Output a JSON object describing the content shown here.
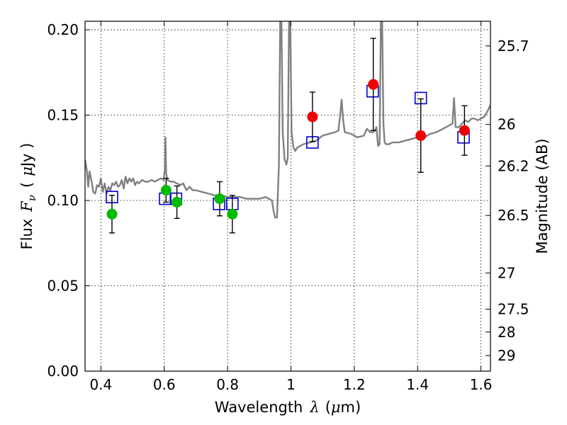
{
  "chart_data": {
    "type": "scatter",
    "title": "",
    "xlabel": "Wavelength",
    "xlabel_symbol": "λ",
    "xlabel_unit_open": "(",
    "xlabel_unit_mu": "μ",
    "xlabel_unit_rest": "m)",
    "ylabel": "Flux",
    "ylabel_symbol": "F",
    "ylabel_subscript": "ν",
    "ylabel_unit_open": "(",
    "ylabel_unit_mu": "μ",
    "ylabel_unit_rest": "Jy )",
    "y2label": "Magnitude (AB)",
    "xlim": [
      0.35,
      1.63
    ],
    "ylim": [
      0.0,
      0.205
    ],
    "grid": true,
    "xticks": [
      {
        "value": 0.4,
        "label": "0.4"
      },
      {
        "value": 0.6,
        "label": "0.6"
      },
      {
        "value": 0.8,
        "label": "0.8"
      },
      {
        "value": 1.0,
        "label": "1"
      },
      {
        "value": 1.2,
        "label": "1.2"
      },
      {
        "value": 1.4,
        "label": "1.4"
      },
      {
        "value": 1.6,
        "label": "1.6"
      }
    ],
    "yticks": [
      {
        "value": 0.0,
        "label": "0.00"
      },
      {
        "value": 0.05,
        "label": "0.05"
      },
      {
        "value": 0.1,
        "label": "0.10"
      },
      {
        "value": 0.15,
        "label": "0.15"
      },
      {
        "value": 0.2,
        "label": "0.20"
      }
    ],
    "y2ticks": [
      {
        "value": 25.7,
        "label": "25.7"
      },
      {
        "value": 26.0,
        "label": "26"
      },
      {
        "value": 26.2,
        "label": "26.2"
      },
      {
        "value": 26.5,
        "label": "26.5"
      },
      {
        "value": 27.0,
        "label": "27"
      },
      {
        "value": 27.5,
        "label": "27.5"
      },
      {
        "value": 28.0,
        "label": "28"
      },
      {
        "value": 29.0,
        "label": "29"
      }
    ],
    "colors": {
      "spectrum": "#808080",
      "model": "#0000cc",
      "optical": "#00bb00",
      "infrared": "#ee0000",
      "errorbar": "#000000"
    },
    "spectrum": [
      [
        0.35,
        0.124
      ],
      [
        0.356,
        0.117
      ],
      [
        0.36,
        0.108
      ],
      [
        0.364,
        0.117
      ],
      [
        0.37,
        0.112
      ],
      [
        0.376,
        0.105
      ],
      [
        0.382,
        0.104
      ],
      [
        0.388,
        0.109
      ],
      [
        0.394,
        0.108
      ],
      [
        0.4,
        0.113
      ],
      [
        0.406,
        0.105
      ],
      [
        0.412,
        0.11
      ],
      [
        0.418,
        0.104
      ],
      [
        0.424,
        0.108
      ],
      [
        0.43,
        0.106
      ],
      [
        0.436,
        0.11
      ],
      [
        0.442,
        0.109
      ],
      [
        0.448,
        0.111
      ],
      [
        0.454,
        0.108
      ],
      [
        0.46,
        0.109
      ],
      [
        0.466,
        0.112
      ],
      [
        0.472,
        0.107
      ],
      [
        0.478,
        0.114
      ],
      [
        0.484,
        0.11
      ],
      [
        0.49,
        0.113
      ],
      [
        0.496,
        0.111
      ],
      [
        0.502,
        0.113
      ],
      [
        0.508,
        0.109
      ],
      [
        0.514,
        0.111
      ],
      [
        0.52,
        0.11
      ],
      [
        0.53,
        0.112
      ],
      [
        0.54,
        0.111
      ],
      [
        0.55,
        0.111
      ],
      [
        0.56,
        0.112
      ],
      [
        0.57,
        0.111
      ],
      [
        0.58,
        0.112
      ],
      [
        0.59,
        0.113
      ],
      [
        0.598,
        0.112
      ],
      [
        0.602,
        0.118
      ],
      [
        0.604,
        0.137
      ],
      [
        0.606,
        0.116
      ],
      [
        0.61,
        0.112
      ],
      [
        0.62,
        0.111
      ],
      [
        0.63,
        0.111
      ],
      [
        0.64,
        0.11
      ],
      [
        0.65,
        0.109
      ],
      [
        0.66,
        0.11
      ],
      [
        0.67,
        0.106
      ],
      [
        0.68,
        0.108
      ],
      [
        0.69,
        0.106
      ],
      [
        0.7,
        0.106
      ],
      [
        0.72,
        0.105
      ],
      [
        0.74,
        0.104
      ],
      [
        0.76,
        0.103
      ],
      [
        0.78,
        0.103
      ],
      [
        0.8,
        0.102
      ],
      [
        0.82,
        0.102
      ],
      [
        0.84,
        0.102
      ],
      [
        0.86,
        0.101
      ],
      [
        0.88,
        0.101
      ],
      [
        0.9,
        0.101
      ],
      [
        0.92,
        0.102
      ],
      [
        0.93,
        0.101
      ],
      [
        0.94,
        0.1
      ],
      [
        0.945,
        0.094
      ],
      [
        0.95,
        0.09
      ],
      [
        0.956,
        0.09
      ],
      [
        0.962,
        0.12
      ],
      [
        0.966,
        0.205
      ],
      [
        0.97,
        0.205
      ],
      [
        0.974,
        0.14
      ],
      [
        0.98,
        0.124
      ],
      [
        0.986,
        0.121
      ],
      [
        0.99,
        0.125
      ],
      [
        0.994,
        0.205
      ],
      [
        0.998,
        0.205
      ],
      [
        1.002,
        0.14
      ],
      [
        1.008,
        0.131
      ],
      [
        1.014,
        0.129
      ],
      [
        1.02,
        0.131
      ],
      [
        1.03,
        0.132
      ],
      [
        1.04,
        0.133
      ],
      [
        1.06,
        0.134
      ],
      [
        1.08,
        0.135
      ],
      [
        1.1,
        0.138
      ],
      [
        1.12,
        0.139
      ],
      [
        1.14,
        0.14
      ],
      [
        1.15,
        0.141
      ],
      [
        1.155,
        0.149
      ],
      [
        1.16,
        0.159
      ],
      [
        1.165,
        0.147
      ],
      [
        1.17,
        0.14
      ],
      [
        1.19,
        0.139
      ],
      [
        1.21,
        0.137
      ],
      [
        1.23,
        0.138
      ],
      [
        1.24,
        0.142
      ],
      [
        1.25,
        0.14
      ],
      [
        1.26,
        0.14
      ],
      [
        1.265,
        0.141
      ],
      [
        1.27,
        0.143
      ],
      [
        1.275,
        0.132
      ],
      [
        1.28,
        0.133
      ],
      [
        1.284,
        0.205
      ],
      [
        1.288,
        0.205
      ],
      [
        1.292,
        0.145
      ],
      [
        1.296,
        0.134
      ],
      [
        1.3,
        0.133
      ],
      [
        1.31,
        0.133
      ],
      [
        1.32,
        0.134
      ],
      [
        1.34,
        0.134
      ],
      [
        1.36,
        0.135
      ],
      [
        1.38,
        0.136
      ],
      [
        1.4,
        0.137
      ],
      [
        1.42,
        0.137
      ],
      [
        1.44,
        0.139
      ],
      [
        1.46,
        0.14
      ],
      [
        1.48,
        0.142
      ],
      [
        1.5,
        0.144
      ],
      [
        1.51,
        0.145
      ],
      [
        1.515,
        0.16
      ],
      [
        1.52,
        0.143
      ],
      [
        1.53,
        0.143
      ],
      [
        1.54,
        0.145
      ],
      [
        1.55,
        0.147
      ],
      [
        1.56,
        0.146
      ],
      [
        1.57,
        0.148
      ],
      [
        1.58,
        0.148
      ],
      [
        1.59,
        0.147
      ],
      [
        1.6,
        0.148
      ],
      [
        1.61,
        0.149
      ],
      [
        1.62,
        0.152
      ],
      [
        1.63,
        0.156
      ]
    ],
    "model_points": [
      {
        "x": 0.435,
        "y": 0.102
      },
      {
        "x": 0.603,
        "y": 0.101
      },
      {
        "x": 0.637,
        "y": 0.101
      },
      {
        "x": 0.773,
        "y": 0.098
      },
      {
        "x": 0.815,
        "y": 0.098
      },
      {
        "x": 1.068,
        "y": 0.134
      },
      {
        "x": 1.258,
        "y": 0.164
      },
      {
        "x": 1.41,
        "y": 0.16
      },
      {
        "x": 1.545,
        "y": 0.137
      }
    ],
    "series": [
      {
        "points": [
          {
            "x": 0.435,
            "y": 0.092,
            "err": 0.011
          },
          {
            "x": 0.606,
            "y": 0.106,
            "err": 0.007
          },
          {
            "x": 0.64,
            "y": 0.099,
            "err": 0.0095
          },
          {
            "x": 0.775,
            "y": 0.101,
            "err": 0.01
          },
          {
            "x": 0.815,
            "y": 0.092,
            "err": 0.011
          }
        ]
      },
      {
        "points": [
          {
            "x": 1.068,
            "y": 0.149,
            "err": 0.0145
          },
          {
            "x": 1.26,
            "y": 0.168,
            "err": 0.027
          },
          {
            "x": 1.41,
            "y": 0.138,
            "err": 0.0215
          },
          {
            "x": 1.548,
            "y": 0.141,
            "err": 0.0145
          }
        ]
      }
    ]
  }
}
